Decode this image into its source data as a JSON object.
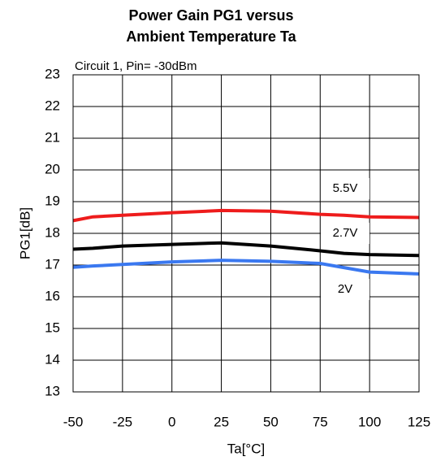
{
  "chart_data": {
    "type": "line",
    "title": [
      "Power Gain PG1 versus",
      "Ambient Temperature Ta"
    ],
    "subtitle": "Circuit 1, Pin= -30dBm",
    "x_label": "Ta[°C]",
    "y_label": "PG1[dB]",
    "x": [
      -50,
      -40,
      -25,
      0,
      25,
      50,
      75,
      87,
      100,
      125
    ],
    "series": [
      {
        "name": "5.5V",
        "color": "#ee1c1c",
        "values": [
          18.4,
          18.52,
          18.57,
          18.65,
          18.72,
          18.7,
          18.6,
          18.57,
          18.52,
          18.5
        ]
      },
      {
        "name": "2.7V",
        "color": "#000000",
        "values": [
          17.5,
          17.53,
          17.6,
          17.65,
          17.7,
          17.6,
          17.45,
          17.37,
          17.33,
          17.3
        ]
      },
      {
        "name": "2V",
        "color": "#3a78f0",
        "values": [
          16.93,
          16.97,
          17.02,
          17.1,
          17.15,
          17.12,
          17.05,
          16.92,
          16.78,
          16.72
        ]
      }
    ],
    "xlim": [
      -50,
      125
    ],
    "xticks": [
      -50,
      -25,
      0,
      25,
      50,
      75,
      100,
      125
    ],
    "ylim": [
      13,
      23
    ],
    "yticks": [
      13,
      14,
      15,
      16,
      17,
      18,
      19,
      20,
      21,
      22,
      23
    ],
    "grid": true
  }
}
